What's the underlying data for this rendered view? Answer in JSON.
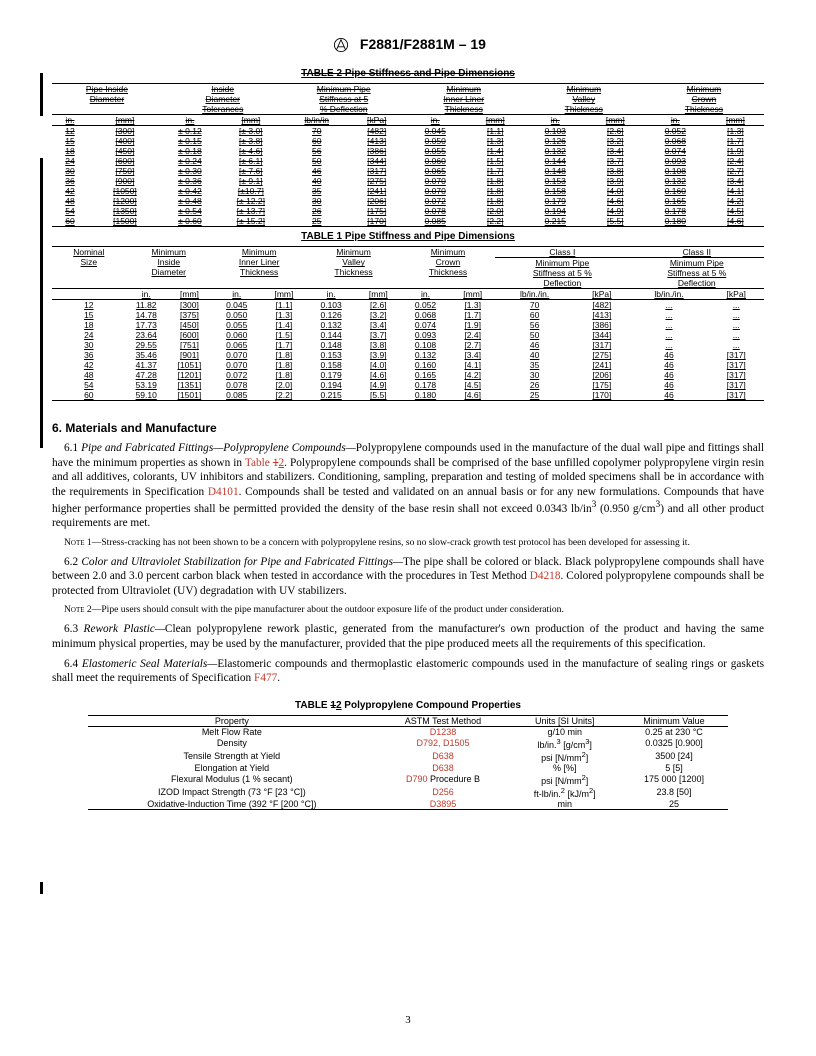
{
  "doc_id": "F2881/F2881M – 19",
  "table2_title": "TABLE 2 Pipe Stiffness and Pipe Dimensions",
  "table2_struck_label": "2",
  "table2_headers": {
    "c1": "Pipe Inside Diameter",
    "c2": "Inside Diameter Tolerances",
    "c3": "Minimum Pipe Stiffness at 5 % Deflection",
    "c4": "Minimum Inner Liner Thickness",
    "c5": "Minimum Valley Thickness",
    "c6": "Minimum Crown Thickness"
  },
  "table2_units": {
    "u1": "in.",
    "u2": "[mm]",
    "u3": "in.",
    "u4": "[mm]",
    "u5": "lb/in/in",
    "u6": "[kPa]",
    "u7": "in.",
    "u8": "[mm]",
    "u9": "in.",
    "u10": "[mm]",
    "u11": "in.",
    "u12": "[mm]"
  },
  "table2_rows": [
    [
      "12",
      "[300]",
      "± 0.12",
      "[± 3.0]",
      "70",
      "[482]",
      "0.045",
      "[1.1]",
      "0.103",
      "[2.6]",
      "0.052",
      "[1.3]"
    ],
    [
      "15",
      "[400]",
      "± 0.15",
      "[± 3.8]",
      "60",
      "[413]",
      "0.050",
      "[1.3]",
      "0.126",
      "[3.2]",
      "0.068",
      "[1.7]"
    ],
    [
      "18",
      "[450]",
      "± 0.18",
      "[± 4.6]",
      "56",
      "[386]",
      "0.055",
      "[1.4]",
      "0.132",
      "[3.4]",
      "0.074",
      "[1.9]"
    ],
    [
      "24",
      "[600]",
      "± 0.24",
      "[± 6.1]",
      "50",
      "[344]",
      "0.060",
      "[1.5]",
      "0.144",
      "[3.7]",
      "0.093",
      "[2.4]"
    ],
    [
      "30",
      "[750]",
      "± 0.30",
      "[± 7.6]",
      "46",
      "[317]",
      "0.065",
      "[1.7]",
      "0.148",
      "[3.8]",
      "0.108",
      "[2.7]"
    ],
    [
      "36",
      "[900]",
      "± 0.36",
      "[± 9.1]",
      "40",
      "[275]",
      "0.070",
      "[1.8]",
      "0.153",
      "[3.9]",
      "0.132",
      "[3.4]"
    ],
    [
      "42",
      "[1050]",
      "± 0.42",
      "[±10.7]",
      "35",
      "[241]",
      "0.070",
      "[1.8]",
      "0.158",
      "[4.0]",
      "0.160",
      "[4.1]"
    ],
    [
      "48",
      "[1200]",
      "± 0.48",
      "[± 12.2]",
      "30",
      "[206]",
      "0.072",
      "[1.8]",
      "0.179",
      "[4.6]",
      "0.165",
      "[4.2]"
    ],
    [
      "54",
      "[1350]",
      "± 0.54",
      "[± 13.7]",
      "26",
      "[175]",
      "0.078",
      "[2.0]",
      "0.194",
      "[4.9]",
      "0.178",
      "[4.5]"
    ],
    [
      "60",
      "[1500]",
      "± 0.60",
      "[± 15.2]",
      "25",
      "[170]",
      "0.085",
      "[2.2]",
      "0.215",
      "[5.5]",
      "0.180",
      "[4.6]"
    ]
  ],
  "table1_title": "TABLE 1 Pipe Stiffness and Pipe Dimensions",
  "table1_headers": {
    "h1": "Nominal Size",
    "h2": "Minimum Inside Diameter",
    "h3": "Minimum Inner Liner Thickness",
    "h4": "Minimum Valley Thickness",
    "h5": "Minimum Crown Thickness",
    "h6": "Class I",
    "h7": "Class II",
    "sub6": "Minimum Pipe Stiffness at 5 % Deflection",
    "sub7": "Minimum Pipe Stiffness at 5 % Deflection"
  },
  "table1_units": {
    "u1": "in.",
    "u2": "[mm]",
    "u3": "in.",
    "u4": "[mm]",
    "u5": "in.",
    "u6": "[mm]",
    "u7": "in.",
    "u8": "[mm]",
    "u9": "lb/in./in.",
    "u10": "[kPa]",
    "u11": "lb/in./in.",
    "u12": "[kPa]"
  },
  "table1_rows": [
    [
      "12",
      "11.82",
      "[300]",
      "0.045",
      "[1.1]",
      "0.103",
      "[2.6]",
      "0.052",
      "[1.3]",
      "70",
      "[482]",
      "...",
      "..."
    ],
    [
      "15",
      "14.78",
      "[375]",
      "0.050",
      "[1.3]",
      "0.126",
      "[3.2]",
      "0.068",
      "[1.7]",
      "60",
      "[413]",
      "...",
      "..."
    ],
    [
      "18",
      "17.73",
      "[450]",
      "0.055",
      "[1.4]",
      "0.132",
      "[3.4]",
      "0.074",
      "[1.9]",
      "56",
      "[386]",
      "...",
      "..."
    ],
    [
      "24",
      "23.64",
      "[600]",
      "0.060",
      "[1.5]",
      "0.144",
      "[3.7]",
      "0.093",
      "[2.4]",
      "50",
      "[344]",
      "...",
      "..."
    ],
    [
      "30",
      "29.55",
      "[751]",
      "0.065",
      "[1.7]",
      "0.148",
      "[3.8]",
      "0.108",
      "[2.7]",
      "46",
      "[317]",
      "...",
      "..."
    ],
    [
      "36",
      "35.46",
      "[901]",
      "0.070",
      "[1.8]",
      "0.153",
      "[3.9]",
      "0.132",
      "[3.4]",
      "40",
      "[275]",
      "46",
      "[317]"
    ],
    [
      "42",
      "41.37",
      "[1051]",
      "0.070",
      "[1.8]",
      "0.158",
      "[4.0]",
      "0.160",
      "[4.1]",
      "35",
      "[241]",
      "46",
      "[317]"
    ],
    [
      "48",
      "47.28",
      "[1201]",
      "0.072",
      "[1.8]",
      "0.179",
      "[4.6]",
      "0.165",
      "[4.2]",
      "30",
      "[206]",
      "46",
      "[317]"
    ],
    [
      "54",
      "53.19",
      "[1351]",
      "0.078",
      "[2.0]",
      "0.194",
      "[4.9]",
      "0.178",
      "[4.5]",
      "26",
      "[175]",
      "46",
      "[317]"
    ],
    [
      "60",
      "59.10",
      "[1501]",
      "0.085",
      "[2.2]",
      "0.215",
      "[5.5]",
      "0.180",
      "[4.6]",
      "25",
      "[170]",
      "46",
      "[317]"
    ]
  ],
  "section6": "6.  Materials and Manufacture",
  "p61_a": "6.1 ",
  "p61_i": "Pipe and Fabricated Fittings—Polypropylene Compounds—",
  "p61_b": "Polypropylene compounds used in the manufacture of the dual wall pipe and fittings shall have the minimum properties as shown in ",
  "p61_link": "Table 12",
  "p61_c": ". Polypropylene compounds shall be comprised of the base unfilled copolymer polypropylene virgin resin and all additives, colorants, UV inhibitors and stabilizers. Conditioning, sampling, preparation and testing of molded specimens shall be in accordance with the requirements in Specification ",
  "p61_link2": "D4101",
  "p61_d": ". Compounds shall be tested and validated on an annual basis or for any new formulations. Compounds that have higher performance properties shall be permitted provided the density of the base resin shall not exceed 0.0343 lb/in",
  "p61_e": " (0.950 g/cm",
  "p61_f": ") and all other product requirements are met.",
  "note1_a": "Note 1—",
  "note1_b": "Stress-cracking has not been shown to be a concern with polypropylene resins, so no slow-crack growth test protocol has been developed for assessing it.",
  "p62_a": "6.2 ",
  "p62_i": "Color and Ultraviolet Stabilization for Pipe and Fabricated Fittings—",
  "p62_b": "The pipe shall be colored or black. Black polypropylene compounds shall have between 2.0 and 3.0 percent carbon black when tested in accordance with the procedures in Test Method ",
  "p62_link": "D4218",
  "p62_c": ". Colored polypropylene compounds shall be protected from Ultraviolet (UV) degradation with UV stabilizers.",
  "note2_a": "Note 2—",
  "note2_b": "Pipe users should consult with the pipe manufacturer about the outdoor exposure life of the product under consideration.",
  "p63_a": "6.3 ",
  "p63_i": "Rework Plastic—",
  "p63_b": "Clean polypropylene rework plastic, generated from the manufacturer's own production of the product and having the same minimum physical properties, may be used by the manufacturer, provided that the pipe produced meets all the requirements of this specification.",
  "p64_a": "6.4 ",
  "p64_i": "Elastomeric Seal Materials—",
  "p64_b": "Elastomeric compounds and thermoplastic elastomeric compounds used in the manufacture of sealing rings or gaskets shall meet the requirements of Specification ",
  "p64_link": "F477",
  "p64_c": ".",
  "table3_title_a": "TABLE ",
  "table3_title_strike": "1",
  "table3_title_ins": "2",
  "table3_title_b": " Polypropylene Compound Properties",
  "table3_headers": {
    "h1": "Property",
    "h2": "ASTM Test Method",
    "h3": "Units [SI Units]",
    "h4": "Minimum Value"
  },
  "table3_rows": [
    [
      "Melt Flow Rate",
      "D1238",
      "g/10 min",
      "0.25 at 230 °C"
    ],
    [
      "Density",
      "D792, D1505",
      "lb/in.³ [g/cm³]",
      "0.0325 [0.900]"
    ],
    [
      "Tensile Strength at Yield",
      "D638",
      "psi [N/mm²]",
      "3500 [24]"
    ],
    [
      "Elongation at Yield",
      "D638",
      "% [%]",
      "5 [5]"
    ],
    [
      "Flexural Modulus (1 % secant)",
      "D790 Procedure B",
      "psi [N/mm²]",
      "175 000 [1200]"
    ],
    [
      "IZOD Impact Strength (73 °F [23 °C])",
      "D256",
      "ft-lb/in.² [kJ/m²]",
      "23.8 [50]"
    ],
    [
      "Oxidative-Induction Time (392 °F [200 °C])",
      "D3895",
      "min",
      "25"
    ]
  ],
  "d790_note": " Procedure B",
  "page_num": "3"
}
